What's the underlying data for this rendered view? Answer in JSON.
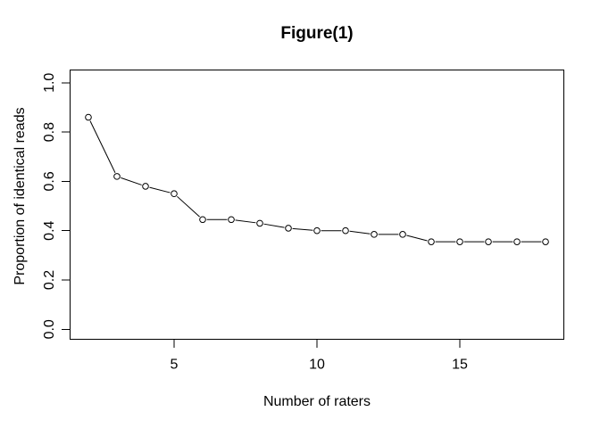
{
  "chart_data": {
    "type": "line",
    "title": "Figure(1)",
    "xlabel": "Number of raters",
    "ylabel": "Proportion of identical reads",
    "x": [
      2,
      3,
      4,
      5,
      6,
      7,
      8,
      9,
      10,
      11,
      12,
      13,
      14,
      15,
      16,
      17,
      18
    ],
    "series": [
      {
        "name": "Proportion of identical reads",
        "values": [
          0.86,
          0.62,
          0.58,
          0.55,
          0.445,
          0.445,
          0.43,
          0.41,
          0.4,
          0.4,
          0.385,
          0.385,
          0.355,
          0.355,
          0.355,
          0.355,
          0.355
        ],
        "marker": "open-circle",
        "color": "#000000"
      }
    ],
    "xticks": {
      "values": [
        5,
        10,
        15
      ],
      "labels": [
        "5",
        "10",
        "15"
      ]
    },
    "yticks": {
      "values": [
        0.0,
        0.2,
        0.4,
        0.6,
        0.8,
        1.0
      ],
      "labels": [
        "0.0",
        "0.2",
        "0.4",
        "0.6",
        "0.8",
        "1.0"
      ]
    },
    "xlim": [
      1.36,
      18.64
    ],
    "ylim": [
      -0.04,
      1.04
    ],
    "grid": false,
    "legend": "none",
    "axis_color": "#000000",
    "text_color": "#000000",
    "background_color": "#ffffff",
    "point_style": "R type='b' (segments with gaps around open circles)"
  }
}
